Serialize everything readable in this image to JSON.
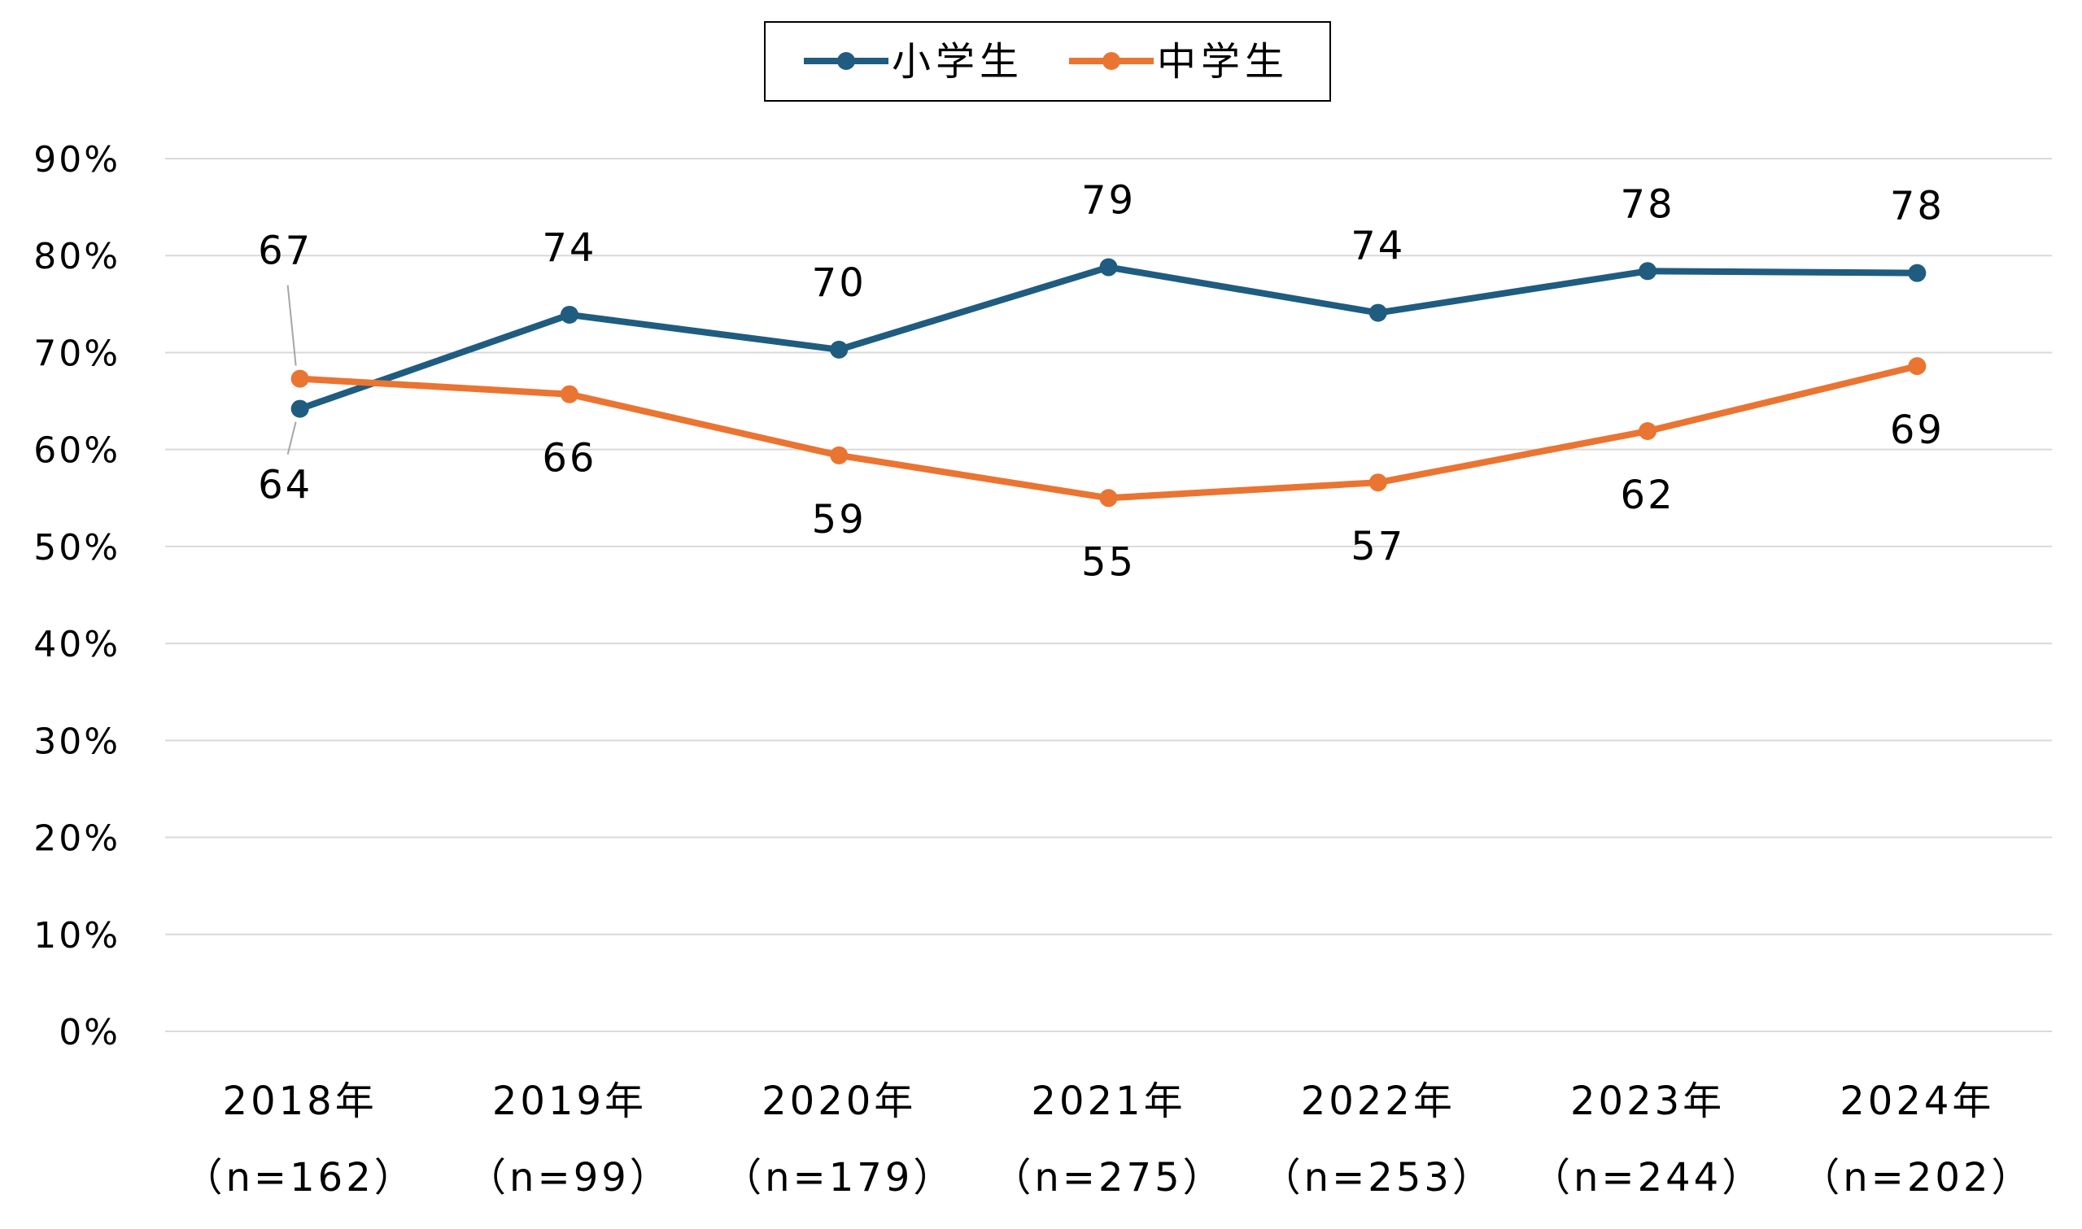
{
  "chart_data": {
    "type": "line",
    "title": "",
    "xlabel": "",
    "ylabel": "",
    "ylim": [
      0,
      90
    ],
    "y_ticks": [
      "0%",
      "10%",
      "20%",
      "30%",
      "40%",
      "50%",
      "60%",
      "70%",
      "80%",
      "90%"
    ],
    "categories": [
      [
        "2018年",
        "（n=162）"
      ],
      [
        "2019年",
        "（n=99）"
      ],
      [
        "2020年",
        "（n=179）"
      ],
      [
        "2021年",
        "（n=275）"
      ],
      [
        "2022年",
        "（n=253）"
      ],
      [
        "2023年",
        "（n=244）"
      ],
      [
        "2024年",
        "（n=202）"
      ]
    ],
    "series": [
      {
        "name": "小学生",
        "color": "#1f5c80",
        "values": [
          64.2,
          73.9,
          70.3,
          78.8,
          74.1,
          78.4,
          78.2
        ],
        "labels": [
          "64",
          "74",
          "70",
          "79",
          "74",
          "78",
          "78"
        ],
        "label_side": [
          "below",
          "above",
          "above",
          "above",
          "above",
          "above",
          "above"
        ]
      },
      {
        "name": "中学生",
        "color": "#ea7432",
        "values": [
          67.3,
          65.7,
          59.4,
          55.0,
          56.6,
          61.9,
          68.6
        ],
        "labels": [
          "67",
          "66",
          "59",
          "55",
          "57",
          "62",
          "69"
        ],
        "label_side": [
          "above",
          "below",
          "below",
          "below",
          "below",
          "below",
          "below"
        ]
      }
    ],
    "grid": true,
    "legend": "top-center"
  }
}
